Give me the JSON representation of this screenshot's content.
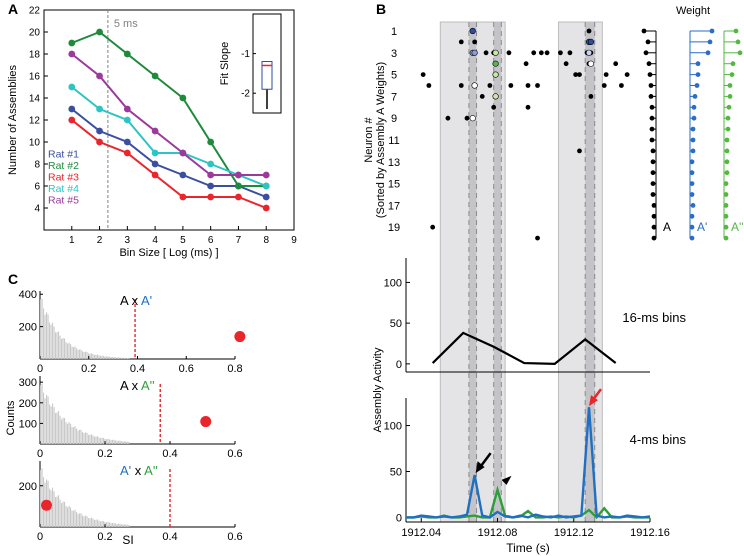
{
  "panels": {
    "a": "A",
    "b": "B",
    "c": "C"
  },
  "chart_data": [
    {
      "id": "A",
      "type": "line",
      "xlabel": "Bin Size [ Log (ms) ]",
      "ylabel": "Number of Assemblies",
      "xlim": [
        0,
        9
      ],
      "ylim": [
        2,
        22
      ],
      "xticks": [
        1,
        2,
        3,
        4,
        5,
        6,
        7,
        8,
        9
      ],
      "yticks": [
        4,
        6,
        8,
        10,
        12,
        14,
        16,
        18,
        20,
        22
      ],
      "vline": {
        "x": 2.3,
        "label": "5 ms"
      },
      "x": [
        1,
        2,
        3,
        4,
        5,
        6,
        7,
        8
      ],
      "series": [
        {
          "name": "Rat #1",
          "color": "#3b4fa0",
          "values": [
            13,
            11,
            10,
            8,
            7,
            6,
            6,
            5
          ]
        },
        {
          "name": "Rat #2",
          "color": "#1e8a3c",
          "values": [
            19,
            20,
            18,
            16,
            14,
            10,
            6,
            6
          ]
        },
        {
          "name": "Rat #3",
          "color": "#e8262b",
          "values": [
            12,
            10,
            9,
            7,
            5,
            5,
            5,
            4
          ]
        },
        {
          "name": "Rat #4",
          "color": "#2ec4c4",
          "values": [
            15,
            13,
            12,
            9,
            9,
            8,
            7,
            6
          ]
        },
        {
          "name": "Rat #5",
          "color": "#9b3a9b",
          "values": [
            18,
            16,
            13,
            11,
            9,
            7,
            7,
            7
          ]
        }
      ],
      "inset": {
        "type": "boxplot",
        "ylabel": "Fit Slope",
        "ylim": [
          -2.5,
          0
        ],
        "yticks": [
          -2,
          -1
        ],
        "median": -1.3,
        "q1": -1.9,
        "q3": -1.2,
        "whisker_low": -2.4,
        "whisker_high": -1.2
      }
    },
    {
      "id": "B-raster",
      "type": "scatter",
      "ylabel": "Neuron #",
      "ylabel2": "(Sorted by Assembly A Weights)",
      "yticks": [
        1,
        3,
        5,
        7,
        9,
        11,
        13,
        15,
        17,
        19
      ],
      "weight_title": "Weight",
      "weight_labels": [
        "A",
        "A'",
        "A''"
      ],
      "weight_colors": [
        "#000000",
        "#2a6cc7",
        "#55b742"
      ],
      "spikes": [
        [
          1912.067,
          1
        ],
        [
          1912.128,
          1
        ],
        [
          1912.061,
          2
        ],
        [
          1912.068,
          2
        ],
        [
          1912.128,
          2
        ],
        [
          1912.129,
          2
        ],
        [
          1912.067,
          3
        ],
        [
          1912.068,
          3
        ],
        [
          1912.074,
          3
        ],
        [
          1912.078,
          3
        ],
        [
          1912.079,
          3
        ],
        [
          1912.086,
          3
        ],
        [
          1912.099,
          3
        ],
        [
          1912.103,
          3
        ],
        [
          1912.106,
          3
        ],
        [
          1912.113,
          3
        ],
        [
          1912.118,
          3
        ],
        [
          1912.127,
          3
        ],
        [
          1912.129,
          3
        ],
        [
          1912.079,
          4
        ],
        [
          1912.095,
          4
        ],
        [
          1912.116,
          4
        ],
        [
          1912.128,
          4
        ],
        [
          1912.129,
          4
        ],
        [
          1912.142,
          4
        ],
        [
          1912.079,
          5
        ],
        [
          1912.041,
          5
        ],
        [
          1912.121,
          5
        ],
        [
          1912.123,
          5
        ],
        [
          1912.137,
          5
        ],
        [
          1912.148,
          5
        ],
        [
          1912.044,
          6
        ],
        [
          1912.061,
          6
        ],
        [
          1912.068,
          6
        ],
        [
          1912.076,
          6
        ],
        [
          1912.087,
          6
        ],
        [
          1912.096,
          6
        ],
        [
          1912.101,
          6
        ],
        [
          1912.136,
          6
        ],
        [
          1912.145,
          6
        ],
        [
          1912.072,
          7
        ],
        [
          1912.079,
          7
        ],
        [
          1912.129,
          7
        ],
        [
          1912.078,
          8
        ],
        [
          1912.096,
          8
        ],
        [
          1912.054,
          9
        ],
        [
          1912.064,
          9
        ],
        [
          1912.067,
          9
        ],
        [
          1912.123,
          12
        ],
        [
          1912.101,
          20
        ],
        [
          1912.046,
          19
        ]
      ],
      "colored_spikes": [
        [
          1912.067,
          1,
          "#2a4fa0"
        ],
        [
          1912.128,
          2,
          "#2a4fa0"
        ],
        [
          1912.129,
          2,
          "#2a4fa0"
        ],
        [
          1912.067,
          3,
          "#8c9ad6"
        ],
        [
          1912.068,
          3,
          "#8c9ad6"
        ],
        [
          1912.079,
          3,
          "#c8e6a8"
        ],
        [
          1912.128,
          3,
          "#c8d3ef"
        ],
        [
          1912.079,
          4,
          "#55b742"
        ],
        [
          1912.129,
          4,
          "#ffffff"
        ],
        [
          1912.079,
          5,
          "#c8e6a8"
        ],
        [
          1912.079,
          7,
          "#c8e6a8"
        ],
        [
          1912.068,
          6,
          "#ffffff"
        ],
        [
          1912.067,
          9,
          "#ffffff"
        ]
      ]
    },
    {
      "id": "B-16ms",
      "type": "line",
      "ylabel": "Assembly Activity",
      "label": "16-ms bins",
      "ylim": [
        -10,
        130
      ],
      "yticks": [
        0,
        50,
        100
      ],
      "x": [
        1912.046,
        1912.062,
        1912.078,
        1912.094,
        1912.11,
        1912.126,
        1912.142
      ],
      "values": [
        1,
        38,
        21,
        1,
        0,
        30,
        1
      ]
    },
    {
      "id": "B-4ms",
      "type": "line",
      "label": "4-ms bins",
      "xlabel": "Time (s)",
      "ylim": [
        -5,
        130
      ],
      "yticks": [
        0,
        50,
        100
      ],
      "xticks": [
        1912.04,
        1912.08,
        1912.12,
        1912.16
      ],
      "xticklabels": [
        "1912.04",
        "1912.08",
        "1912.12",
        "1912.16"
      ],
      "x": [
        1912.032,
        1912.036,
        1912.04,
        1912.044,
        1912.048,
        1912.052,
        1912.056,
        1912.06,
        1912.064,
        1912.068,
        1912.072,
        1912.076,
        1912.08,
        1912.084,
        1912.088,
        1912.092,
        1912.096,
        1912.1,
        1912.104,
        1912.108,
        1912.112,
        1912.116,
        1912.12,
        1912.124,
        1912.128,
        1912.132,
        1912.136,
        1912.14,
        1912.144,
        1912.148,
        1912.152,
        1912.156,
        1912.16
      ],
      "series": [
        {
          "name": "A",
          "color": "#1f6fc2",
          "values": [
            0,
            0,
            2,
            1,
            0,
            1,
            0,
            1,
            3,
            46,
            2,
            0,
            6,
            1,
            0,
            2,
            0,
            3,
            1,
            0,
            2,
            0,
            1,
            2,
            120,
            2,
            0,
            1,
            0,
            2,
            1,
            0,
            1
          ]
        },
        {
          "name": "A''",
          "color": "#2e9e3a",
          "values": [
            0,
            0,
            1,
            0,
            0,
            2,
            0,
            0,
            1,
            2,
            0,
            0,
            30,
            2,
            0,
            1,
            7,
            0,
            0,
            1,
            0,
            1,
            0,
            2,
            8,
            0,
            10,
            0,
            0,
            1,
            0,
            0,
            0
          ]
        }
      ],
      "shaded_windows": [
        [
          1912.05,
          1912.084
        ],
        [
          1912.112,
          1912.135
        ]
      ],
      "dashed_windows": [
        [
          1912.065,
          1912.069
        ],
        [
          1912.078,
          1912.082
        ],
        [
          1912.126,
          1912.131
        ]
      ]
    },
    {
      "id": "C",
      "type": "histogram",
      "xlabel": "SI",
      "ylabel": "Counts",
      "xlim": [
        0,
        0.65
      ],
      "xticks": [
        0,
        0.2,
        0.4,
        0.6,
        0.8
      ],
      "panels": [
        {
          "title": "A x A'",
          "left": "A",
          "sep": " x ",
          "right": "A'",
          "left_color": "#000000",
          "right_color": "#1f6fc2",
          "ylim": [
            0,
            420
          ],
          "yticks": [
            200,
            400
          ],
          "xmax": 0.8,
          "xtickvals": [
            0,
            0.2,
            0.4,
            0.6,
            0.8
          ],
          "threshold": 0.39,
          "observed": 0.82,
          "decay": 0.07,
          "peak": 400
        },
        {
          "title": "A x A''",
          "left": "A",
          "sep": " x ",
          "right": "A''",
          "left_color": "#000000",
          "right_color": "#2e9e3a",
          "ylim": [
            0,
            330
          ],
          "yticks": [
            100,
            200,
            300
          ],
          "xmax": 0.6,
          "xtickvals": [
            0,
            0.2,
            0.4,
            0.6
          ],
          "threshold": 0.37,
          "observed": 0.51,
          "decay": 0.09,
          "peak": 310
        },
        {
          "title": "A' x A''",
          "left": "A'",
          "sep": " x ",
          "right": "A''",
          "left_color": "#1f6fc2",
          "right_color": "#2e9e3a",
          "ylim": [
            0,
            320
          ],
          "yticks": [
            200
          ],
          "xmax": 0.6,
          "xtickvals": [
            0,
            0.2,
            0.4,
            0.6
          ],
          "threshold": 0.4,
          "observed": 0.02,
          "decay": 0.09,
          "peak": 300
        }
      ]
    }
  ]
}
